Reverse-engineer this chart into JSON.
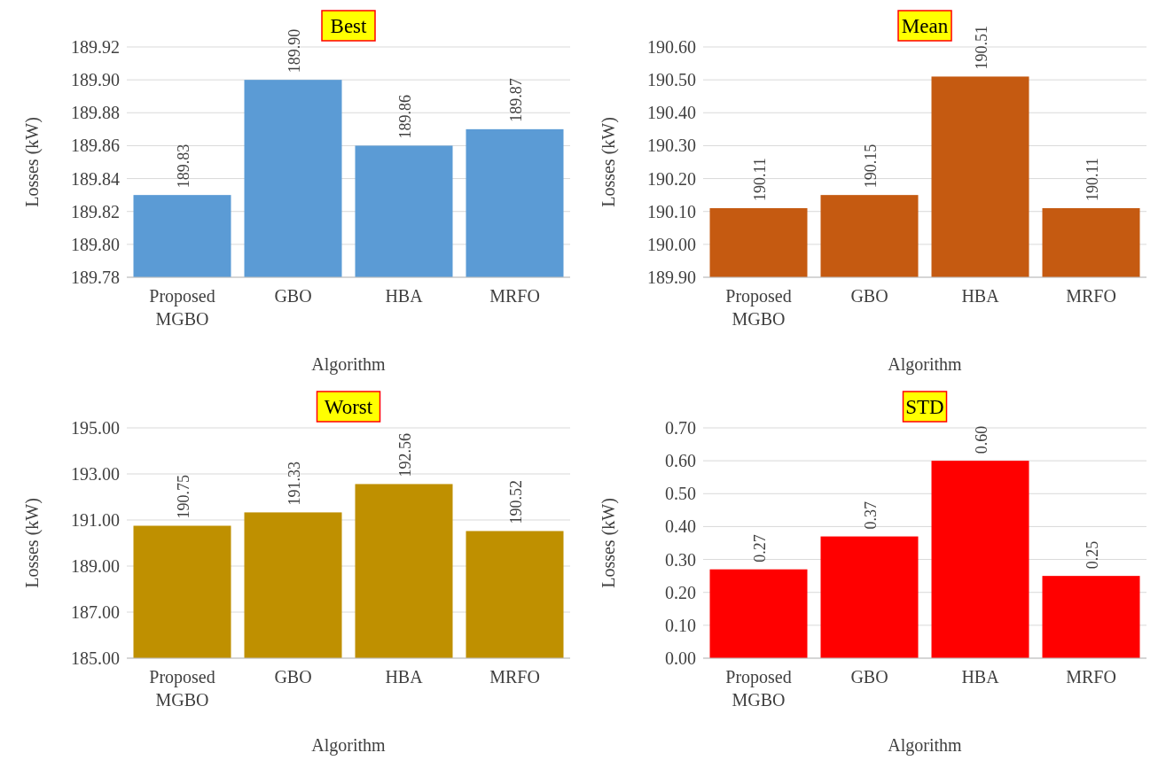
{
  "chart_data": [
    {
      "type": "bar",
      "title": "Best",
      "xlabel": "Algorithm",
      "ylabel": "Losses (kW)",
      "categories": [
        "Proposed MGBO",
        "GBO",
        "HBA",
        "MRFO"
      ],
      "values": [
        189.83,
        189.9,
        189.86,
        189.87
      ],
      "value_labels": [
        "189.83",
        "189.90",
        "189.86",
        "189.87"
      ],
      "color": "#5b9bd5",
      "ylim": [
        189.78,
        189.92
      ],
      "yticks": [
        {
          "value": 189.78,
          "label": "189.78"
        },
        {
          "value": 189.8,
          "label": "189.80"
        },
        {
          "value": 189.82,
          "label": "189.82"
        },
        {
          "value": 189.84,
          "label": "189.84"
        },
        {
          "value": 189.86,
          "label": "189.86"
        },
        {
          "value": 189.88,
          "label": "189.88"
        },
        {
          "value": 189.9,
          "label": "189.90"
        },
        {
          "value": 189.92,
          "label": "189.92"
        }
      ],
      "grid": "y"
    },
    {
      "type": "bar",
      "title": "Mean",
      "xlabel": "Algorithm",
      "ylabel": "Losses (kW)",
      "categories": [
        "Proposed MGBO",
        "GBO",
        "HBA",
        "MRFO"
      ],
      "values": [
        190.11,
        190.15,
        190.51,
        190.11
      ],
      "value_labels": [
        "190.11",
        "190.15",
        "190.51",
        "190.11"
      ],
      "color": "#c55a11",
      "ylim": [
        189.9,
        190.6
      ],
      "yticks": [
        {
          "value": 189.9,
          "label": "189.90"
        },
        {
          "value": 190.0,
          "label": "190.00"
        },
        {
          "value": 190.1,
          "label": "190.10"
        },
        {
          "value": 190.2,
          "label": "190.20"
        },
        {
          "value": 190.3,
          "label": "190.30"
        },
        {
          "value": 190.4,
          "label": "190.40"
        },
        {
          "value": 190.5,
          "label": "190.50"
        },
        {
          "value": 190.6,
          "label": "190.60"
        }
      ],
      "grid": "y"
    },
    {
      "type": "bar",
      "title": "Worst",
      "xlabel": "Algorithm",
      "ylabel": "Losses (kW)",
      "categories": [
        "Proposed MGBO",
        "GBO",
        "HBA",
        "MRFO"
      ],
      "values": [
        190.75,
        191.33,
        192.56,
        190.52
      ],
      "value_labels": [
        "190.75",
        "191.33",
        "192.56",
        "190.52"
      ],
      "color": "#bf9000",
      "ylim": [
        185,
        195
      ],
      "yticks": [
        {
          "value": 185,
          "label": "185.00"
        },
        {
          "value": 187,
          "label": "187.00"
        },
        {
          "value": 189,
          "label": "189.00"
        },
        {
          "value": 191,
          "label": "191.00"
        },
        {
          "value": 193,
          "label": "193.00"
        },
        {
          "value": 195,
          "label": "195.00"
        }
      ],
      "grid": "y"
    },
    {
      "type": "bar",
      "title": "STD",
      "xlabel": "Algorithm",
      "ylabel": "Losses (kW)",
      "categories": [
        "Proposed MGBO",
        "GBO",
        "HBA",
        "MRFO"
      ],
      "values": [
        0.27,
        0.37,
        0.6,
        0.25
      ],
      "value_labels": [
        "0.27",
        "0.37",
        "0.60",
        "0.25"
      ],
      "color": "#ff0000",
      "ylim": [
        0,
        0.7
      ],
      "yticks": [
        {
          "value": 0,
          "label": "0.00"
        },
        {
          "value": 0.1,
          "label": "0.10"
        },
        {
          "value": 0.2,
          "label": "0.20"
        },
        {
          "value": 0.3,
          "label": "0.30"
        },
        {
          "value": 0.4,
          "label": "0.40"
        },
        {
          "value": 0.5,
          "label": "0.50"
        },
        {
          "value": 0.6,
          "label": "0.60"
        },
        {
          "value": 0.7,
          "label": "0.70"
        }
      ],
      "grid": "y"
    }
  ]
}
